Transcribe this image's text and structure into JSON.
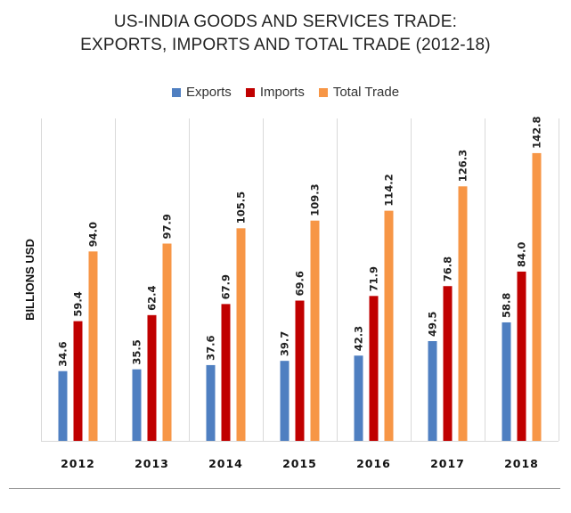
{
  "title_line1": "US-INDIA GOODS AND SERVICES TRADE:",
  "title_line2": "EXPORTS, IMPORTS AND TOTAL TRADE (2012-18)",
  "legend": [
    {
      "label": "Exports",
      "color": "#4f7fc1"
    },
    {
      "label": "Imports",
      "color": "#c00000"
    },
    {
      "label": "Total Trade",
      "color": "#f79646"
    }
  ],
  "chart_data": {
    "type": "bar",
    "title": "US-INDIA GOODS AND SERVICES TRADE: EXPORTS, IMPORTS AND TOTAL TRADE (2012-18)",
    "xlabel": "",
    "ylabel": "BILLIONS USD",
    "categories": [
      "2012",
      "2013",
      "2014",
      "2015",
      "2016",
      "2017",
      "2018"
    ],
    "series": [
      {
        "name": "Exports",
        "values": [
          34.6,
          35.5,
          37.6,
          39.7,
          42.3,
          49.5,
          58.8
        ]
      },
      {
        "name": "Imports",
        "values": [
          59.4,
          62.4,
          67.9,
          69.6,
          71.9,
          76.8,
          84.0
        ]
      },
      {
        "name": "Total Trade",
        "values": [
          94.0,
          97.9,
          105.5,
          109.3,
          114.2,
          126.3,
          142.8
        ]
      }
    ],
    "ylim": [
      0,
      160
    ],
    "grid": false,
    "legend_position": "top-center",
    "data_labels": true
  }
}
